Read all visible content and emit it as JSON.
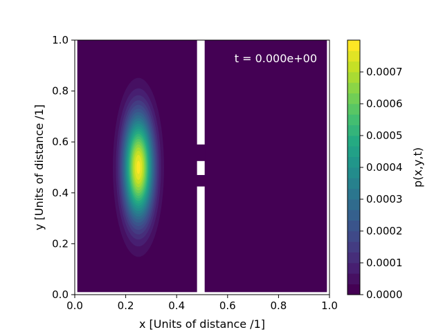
{
  "chart_data": {
    "type": "heatmap",
    "title": "",
    "annotation": "t = 0.000e+00",
    "xlabel": "x [Units of distance /1]",
    "ylabel": "y [Units of distance /1]",
    "xlim": [
      0.0,
      1.0
    ],
    "ylim": [
      0.0,
      1.0
    ],
    "xticks": [
      "0.0",
      "0.2",
      "0.4",
      "0.6",
      "0.8",
      "1.0"
    ],
    "yticks": [
      "0.0",
      "0.2",
      "0.4",
      "0.6",
      "0.8",
      "1.0"
    ],
    "colorbar": {
      "label": "p(x,y,t)",
      "ticks": [
        "0.0000",
        "0.0001",
        "0.0002",
        "0.0003",
        "0.0004",
        "0.0005",
        "0.0006",
        "0.0007"
      ],
      "range": [
        0.0,
        0.0008
      ],
      "levels": 24,
      "colormap": "viridis"
    },
    "gaussian": {
      "center": [
        0.25,
        0.5
      ],
      "sigma_x": 0.04,
      "sigma_y": 0.14,
      "peak": 0.00078
    },
    "domain_x": [
      0.01,
      0.99
    ],
    "domain_y": [
      0.01,
      1.0
    ],
    "barrier": {
      "x_range": [
        0.48,
        0.51
      ],
      "openings_y": [
        [
          0.425,
          0.47
        ],
        [
          0.525,
          0.59
        ]
      ]
    },
    "grid": false,
    "colors": {
      "background": "#440154",
      "barrier": "#ffffff",
      "annotation_text": "#ffffff"
    }
  }
}
